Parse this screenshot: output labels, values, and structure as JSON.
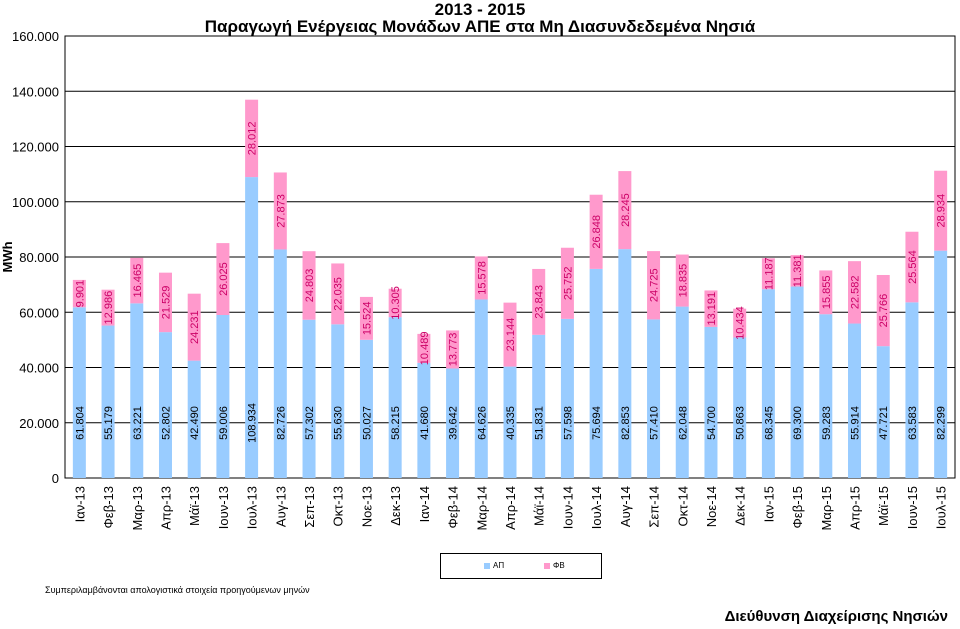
{
  "chart_data": {
    "type": "bar",
    "stacked": true,
    "title_line1": "2013 - 2015",
    "title_line2": "Παραγωγή Ενέργειας Μονάδων ΑΠΕ στα Μη Διασυνδεδεμένα Νησιά",
    "ylabel": "MWh",
    "ylim": [
      0,
      160000
    ],
    "y_ticks": [
      "0",
      "20.000",
      "40.000",
      "60.000",
      "80.000",
      "100.000",
      "120.000",
      "140.000",
      "160.000"
    ],
    "grid": true,
    "categories": [
      "Ιαν-13",
      "Φεβ-13",
      "Μαρ-13",
      "Απρ-13",
      "Μάϊ-13",
      "Ιουν-13",
      "Ιουλ-13",
      "Αυγ-13",
      "Σεπ-13",
      "Οκτ-13",
      "Νοε-13",
      "Δεκ-13",
      "Ιαν-14",
      "Φεβ-14",
      "Μαρ-14",
      "Απρ-14",
      "Μάϊ-14",
      "Ιουν-14",
      "Ιουλ-14",
      "Αυγ-14",
      "Σεπ-14",
      "Οκτ-14",
      "Νοε-14",
      "Δεκ-14",
      "Ιαν-15",
      "Φεβ-15",
      "Μαρ-15",
      "Απρ-15",
      "Μάϊ-15",
      "Ιουν-15",
      "Ιουλ-15"
    ],
    "series": [
      {
        "name": "ΑΠ",
        "color": "#99ccff",
        "values": [
          61804,
          55179,
          63221,
          52802,
          42490,
          59006,
          108934,
          82726,
          57302,
          55630,
          50027,
          58215,
          41680,
          39642,
          64626,
          40335,
          51831,
          57598,
          75694,
          82853,
          57410,
          62048,
          54700,
          50863,
          68345,
          69300,
          59283,
          55914,
          47721,
          63583,
          82299
        ],
        "labels": [
          "61.804",
          "55.179",
          "63.221",
          "52.802",
          "42.490",
          "59.006",
          "108.934",
          "82.726",
          "57.302",
          "55.630",
          "50.027",
          "58.215",
          "41.680",
          "39.642",
          "64.626",
          "40.335",
          "51.831",
          "57.598",
          "75.694",
          "82.853",
          "57.410",
          "62.048",
          "54.700",
          "50.863",
          "68.345",
          "69.300",
          "59.283",
          "55.914",
          "47.721",
          "63.583",
          "82.299"
        ]
      },
      {
        "name": "ΦΒ",
        "color": "#ff99cc",
        "values": [
          9901,
          12986,
          16465,
          21529,
          24231,
          26025,
          28012,
          27873,
          24803,
          22035,
          15524,
          10305,
          10489,
          13773,
          15578,
          23144,
          23843,
          25752,
          26848,
          28245,
          24725,
          18835,
          13191,
          10434,
          11187,
          11381,
          15855,
          22582,
          25766,
          25564,
          28934
        ],
        "labels": [
          "9.901",
          "12.986",
          "16.465",
          "21.529",
          "24.231",
          "26.025",
          "28.012",
          "27.873",
          "24.803",
          "22.035",
          "15.524",
          "10.305",
          "10.489",
          "13.773",
          "15.578",
          "23.144",
          "23.843",
          "25.752",
          "26.848",
          "28.245",
          "24.725",
          "18.835",
          "13.191",
          "10.434",
          "11.187",
          "11.381",
          "15.855",
          "22.582",
          "25.766",
          "25.564",
          "28.934"
        ]
      }
    ],
    "legend_position": "bottom"
  },
  "note": "Συμπεριλαμβάνονται απολογιστικά στοιχεία προηγούμενων μηνών",
  "footer": "Διεύθυνση Διαχείρισης Νησιών"
}
